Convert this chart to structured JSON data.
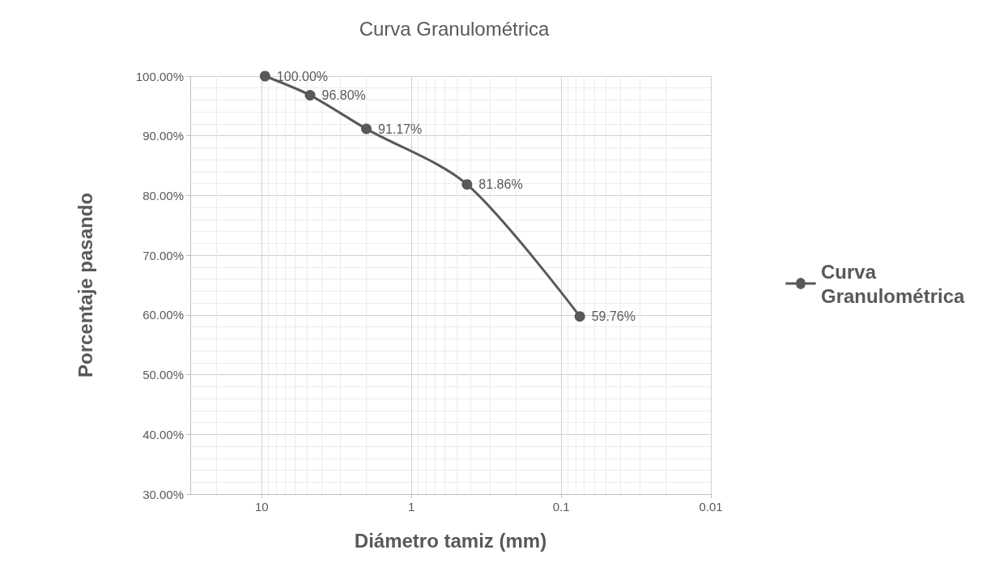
{
  "chart_data": {
    "type": "line",
    "title": "Curva Granulométrica",
    "xlabel": "Diámetro tamiz (mm)",
    "ylabel": "Porcentaje pasando",
    "x": [
      9.5,
      4.75,
      2.0,
      0.425,
      0.075
    ],
    "series": [
      {
        "name": "Curva Granulométrica",
        "color": "#595959",
        "values": [
          100,
          96.8,
          91.17,
          81.86,
          59.76
        ],
        "value_labels": [
          "100.00%",
          "96.80%",
          "91.17%",
          "81.86%",
          "59.76%"
        ]
      }
    ],
    "log": "x",
    "xlim": [
      30,
      0.01
    ],
    "xticks": [
      10,
      1,
      0.1,
      0.01
    ],
    "ylim": [
      30,
      100
    ],
    "yticks": [
      {
        "value": 30,
        "label": "30.00%"
      },
      {
        "value": 40,
        "label": "40.00%"
      },
      {
        "value": 50,
        "label": "50.00%"
      },
      {
        "value": 60,
        "label": "60.00%"
      },
      {
        "value": 70,
        "label": "70.00%"
      },
      {
        "value": 80,
        "label": "80.00%"
      },
      {
        "value": 90,
        "label": "90.00%"
      },
      {
        "value": 100,
        "label": "100.00%"
      }
    ],
    "grid": true,
    "legend": "right",
    "marker": "circle",
    "line_style": "solid"
  }
}
